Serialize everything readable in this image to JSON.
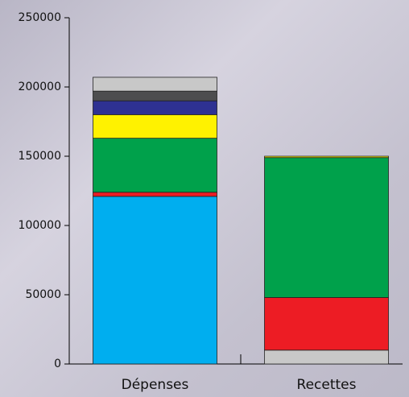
{
  "chart_data": {
    "type": "stacked-bar",
    "categories": [
      "Dépenses",
      "Recettes"
    ],
    "series": [
      {
        "color": "#00aeef",
        "values": [
          121000,
          null
        ]
      },
      {
        "color": "#c8c8c8",
        "values": [
          null,
          10000
        ]
      },
      {
        "color": "#ed1c24",
        "values": [
          3000,
          38000
        ]
      },
      {
        "color": "#00a14b",
        "values": [
          39000,
          101000
        ]
      },
      {
        "color": "#fff200",
        "values": [
          17000,
          1000
        ]
      },
      {
        "color": "#2e3192",
        "values": [
          10000,
          null
        ]
      },
      {
        "color": "#4d4d4f",
        "values": [
          7000,
          null
        ]
      },
      {
        "color": "#c8c8c8",
        "values": [
          10000,
          null
        ]
      }
    ],
    "ylim": [
      0,
      250000
    ],
    "yticks": [
      0,
      50000,
      100000,
      150000,
      200000,
      250000
    ]
  }
}
